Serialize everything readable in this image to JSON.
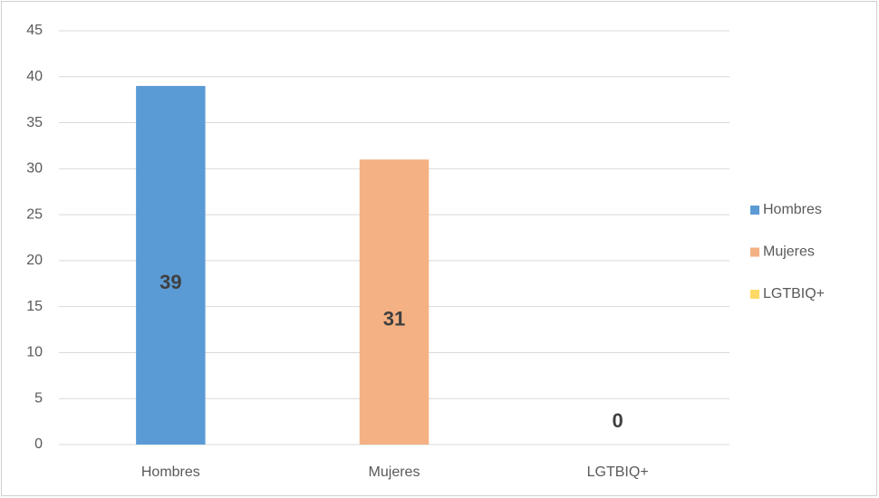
{
  "chart_data": {
    "type": "bar",
    "categories": [
      "Hombres",
      "Mujeres",
      "LGTBIQ+"
    ],
    "values": [
      39,
      31,
      0
    ],
    "colors": [
      "#5b9bd5",
      "#f4b183",
      "#ffd966"
    ],
    "ylim": [
      0,
      45
    ],
    "yticks": [
      0,
      5,
      10,
      15,
      20,
      25,
      30,
      35,
      40,
      45
    ],
    "grid": true,
    "legend": "right"
  }
}
